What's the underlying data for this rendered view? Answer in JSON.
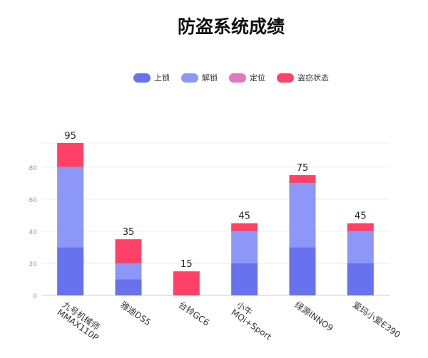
{
  "chart_data": {
    "type": "bar",
    "stacked": true,
    "title": "防盗系统成绩",
    "categories": [
      "九号机械师\nMMAX110P",
      "雅迪DS5",
      "台铃GC6",
      "小牛\nMQi+Sport",
      "绿源INNO9",
      "爱玛小爱E390"
    ],
    "series": [
      {
        "name": "上锁",
        "color": "#6672ee",
        "values": [
          30,
          10,
          0,
          20,
          30,
          20
        ]
      },
      {
        "name": "解锁",
        "color": "#8c97f7",
        "values": [
          50,
          10,
          0,
          20,
          40,
          20
        ]
      },
      {
        "name": "定位",
        "color": "#e377c2",
        "values": [
          0,
          0,
          0,
          0,
          0,
          0
        ]
      },
      {
        "name": "盗窃状态",
        "color": "#ff4168",
        "values": [
          15,
          15,
          15,
          5,
          5,
          5
        ]
      }
    ],
    "totals": [
      "95",
      "35",
      "15",
      "45",
      "75",
      "45"
    ],
    "yticks": [
      "0",
      "20",
      "40",
      "60",
      "80"
    ],
    "ylim": [
      0,
      95
    ],
    "grid": true,
    "legend_position": "top"
  }
}
